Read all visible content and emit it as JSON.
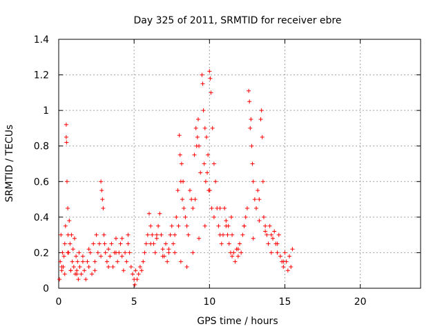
{
  "chart_data": {
    "type": "scatter",
    "title": "Day 325 of 2011, SRMTID for receiver ebre",
    "xlabel": "GPS time / hours",
    "ylabel": "SRMTID / TECUs",
    "xlim": [
      0,
      24
    ],
    "ylim": [
      0,
      1.4
    ],
    "xticks": [
      0,
      5,
      10,
      15,
      20
    ],
    "xtick_labels": [
      "0",
      "5",
      "10",
      "15",
      "20"
    ],
    "yticks": [
      0,
      0.2,
      0.4,
      0.6,
      0.8,
      1.0,
      1.2,
      1.4
    ],
    "ytick_labels": [
      "0",
      "0.2",
      "0.4",
      "0.6",
      "0.8",
      "1",
      "1.2",
      "1.4"
    ],
    "grid": true,
    "marker": "plus",
    "color": "#ff0000",
    "series": [
      {
        "name": "SRMTID",
        "x": [
          0.05,
          0.1,
          0.15,
          0.2,
          0.25,
          0.3,
          0.35,
          0.4,
          0.45,
          0.5,
          0.5,
          0.52,
          0.55,
          0.6,
          0.62,
          0.65,
          0.7,
          0.75,
          0.8,
          0.85,
          0.9,
          0.95,
          1.0,
          1.05,
          1.1,
          1.15,
          1.2,
          1.25,
          1.3,
          1.35,
          1.4,
          1.5,
          1.6,
          1.7,
          1.8,
          1.9,
          2.0,
          2.1,
          2.2,
          2.3,
          2.4,
          2.5,
          2.6,
          2.7,
          2.8,
          2.85,
          2.9,
          2.95,
          3.0,
          3.05,
          3.1,
          3.2,
          3.3,
          3.4,
          3.5,
          3.6,
          3.7,
          3.8,
          3.9,
          4.0,
          4.1,
          4.2,
          4.3,
          4.4,
          4.5,
          4.6,
          4.7,
          4.8,
          4.9,
          5.0,
          5.05,
          5.1,
          5.2,
          5.3,
          5.4,
          5.5,
          5.6,
          5.7,
          5.8,
          5.9,
          6.0,
          6.1,
          6.2,
          6.3,
          6.4,
          6.5,
          6.6,
          6.7,
          6.8,
          6.9,
          7.0,
          7.1,
          7.2,
          7.3,
          7.4,
          7.5,
          7.6,
          7.7,
          7.8,
          7.9,
          8.0,
          8.1,
          8.2,
          8.3,
          8.4,
          8.5,
          8.6,
          8.7,
          8.8,
          8.9,
          9.0,
          9.1,
          9.2,
          9.3,
          9.4,
          9.5,
          9.6,
          9.7,
          9.8,
          9.9,
          10.0,
          10.05,
          10.1,
          10.2,
          10.3,
          10.4,
          10.5,
          10.6,
          10.7,
          10.8,
          10.9,
          11.0,
          11.1,
          11.2,
          11.3,
          11.4,
          11.5,
          11.6,
          11.7,
          11.8,
          11.9,
          12.0,
          12.1,
          12.2,
          12.3,
          12.4,
          12.5,
          12.6,
          12.65,
          12.7,
          12.8,
          12.9,
          13.0,
          13.1,
          13.2,
          13.3,
          13.4,
          13.45,
          13.5,
          13.6,
          13.7,
          13.8,
          13.9,
          14.0,
          14.1,
          14.2,
          14.3,
          14.4,
          14.5,
          14.6,
          14.7,
          14.8,
          14.9,
          15.0,
          15.1,
          15.2,
          15.3,
          15.4,
          15.5,
          0.2,
          0.4,
          0.6,
          0.8,
          1.2,
          1.6,
          2.0,
          2.4,
          2.8,
          3.3,
          3.8,
          4.2,
          4.6,
          6.1,
          6.5,
          6.9,
          7.3,
          7.7,
          8.1,
          8.5,
          8.9,
          9.3,
          9.7,
          10.3,
          10.7,
          11.1,
          11.5,
          11.9,
          12.3,
          12.9,
          13.3,
          13.7,
          14.1,
          14.5,
          14.9,
          9.15,
          9.25,
          9.55,
          9.65,
          9.75,
          9.85,
          10.02,
          12.75,
          12.85,
          13.55,
          11.25,
          11.45,
          7.95,
          8.05,
          8.15,
          8.25,
          9.05,
          9.95,
          10.15
        ],
        "y": [
          0.05,
          0.15,
          0.3,
          0.1,
          0.2,
          0.12,
          0.18,
          0.08,
          0.35,
          0.92,
          0.85,
          0.82,
          0.6,
          0.45,
          0.3,
          0.2,
          0.38,
          0.25,
          0.1,
          0.3,
          0.15,
          0.22,
          0.12,
          0.28,
          0.08,
          0.18,
          0.1,
          0.15,
          0.05,
          0.2,
          0.12,
          0.08,
          0.18,
          0.1,
          0.05,
          0.15,
          0.12,
          0.2,
          0.08,
          0.25,
          0.15,
          0.3,
          0.2,
          0.25,
          0.6,
          0.55,
          0.5,
          0.45,
          0.3,
          0.25,
          0.2,
          0.15,
          0.22,
          0.18,
          0.25,
          0.12,
          0.2,
          0.28,
          0.15,
          0.2,
          0.25,
          0.18,
          0.1,
          0.2,
          0.15,
          0.25,
          0.2,
          0.12,
          0.08,
          0.05,
          0.02,
          0.1,
          0.05,
          0.08,
          0.12,
          0.1,
          0.15,
          0.2,
          0.25,
          0.3,
          0.42,
          0.35,
          0.3,
          0.25,
          0.2,
          0.28,
          0.35,
          0.42,
          0.3,
          0.22,
          0.18,
          0.25,
          0.15,
          0.2,
          0.3,
          0.35,
          0.25,
          0.2,
          0.4,
          0.55,
          0.86,
          0.6,
          0.5,
          0.45,
          0.4,
          0.35,
          0.3,
          0.55,
          0.5,
          0.45,
          0.75,
          0.9,
          0.85,
          0.8,
          0.65,
          1.2,
          1.0,
          0.9,
          0.85,
          0.75,
          1.22,
          1.18,
          1.1,
          0.9,
          0.7,
          0.6,
          0.45,
          0.35,
          0.3,
          0.25,
          0.3,
          0.45,
          0.35,
          0.3,
          0.25,
          0.2,
          0.18,
          0.2,
          0.15,
          0.22,
          0.18,
          0.25,
          0.2,
          0.3,
          0.35,
          0.4,
          0.45,
          1.11,
          1.05,
          0.9,
          0.8,
          0.6,
          0.5,
          0.45,
          0.55,
          0.5,
          0.95,
          1.0,
          0.85,
          0.4,
          0.35,
          0.3,
          0.25,
          0.35,
          0.3,
          0.28,
          0.32,
          0.25,
          0.2,
          0.3,
          0.18,
          0.15,
          0.12,
          0.2,
          0.15,
          0.1,
          0.18,
          0.12,
          0.22,
          0.12,
          0.25,
          0.2,
          0.1,
          0.08,
          0.15,
          0.22,
          0.1,
          0.18,
          0.12,
          0.2,
          0.28,
          0.3,
          0.25,
          0.3,
          0.18,
          0.22,
          0.3,
          0.15,
          0.12,
          0.2,
          0.28,
          0.35,
          0.4,
          0.45,
          0.38,
          0.3,
          0.22,
          0.35,
          0.28,
          0.38,
          0.32,
          0.2,
          0.25,
          0.15,
          0.8,
          0.95,
          1.15,
          0.7,
          0.6,
          0.65,
          0.55,
          0.95,
          0.7,
          0.6,
          0.35,
          0.4,
          0.35,
          0.75,
          0.7,
          0.6,
          0.5,
          0.55,
          0.45
        ]
      }
    ]
  }
}
